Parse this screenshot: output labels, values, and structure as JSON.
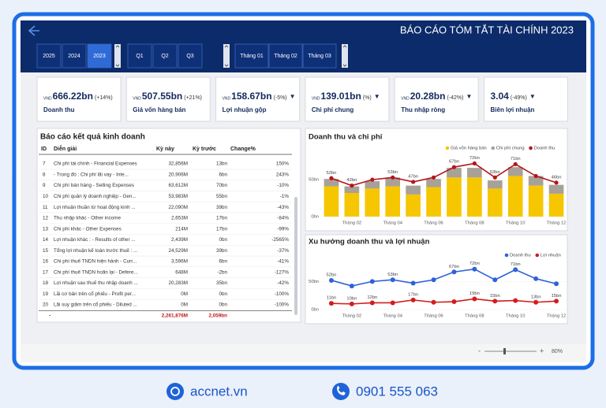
{
  "header": {
    "title": "BÁO CÁO TÓM TẮT TÀI CHÍNH 2023"
  },
  "filters": {
    "years": [
      "2025",
      "2024",
      "2023"
    ],
    "selected_year": "2023",
    "quarters": [
      "Q1",
      "Q2",
      "Q3"
    ],
    "months": [
      "Tháng 01",
      "Tháng 02",
      "Tháng 03"
    ]
  },
  "kpis": [
    {
      "unit": "VND",
      "value": "666.22bn",
      "change": "(+14%)",
      "label": "Doanh thu"
    },
    {
      "unit": "VND",
      "value": "507.55bn",
      "change": "(+21%)",
      "label": "Giá vốn hàng bán"
    },
    {
      "unit": "VND",
      "value": "158.67bn",
      "change": "(-5%)",
      "trend": "▼",
      "label": "Lợi nhuận gộp"
    },
    {
      "unit": "VND",
      "value": "139.01bn",
      "change": "(%)",
      "trend": "▼",
      "label": "Chi phí chung"
    },
    {
      "unit": "VND",
      "value": "20.28bn",
      "change": "(-42%)",
      "trend": "▼",
      "label": "Thu nhập ròng"
    },
    {
      "value": "3.04",
      "change": "(-49%)",
      "trend": "▼",
      "label": "Biên lợi nhuận"
    }
  ],
  "table": {
    "title": "Báo cáo kết quả kinh doanh",
    "columns": [
      "ID",
      "Diễn giải",
      "Kỳ này",
      "Kỳ trước",
      "Change%"
    ],
    "rows": [
      [
        "7",
        "Chi phí tài chính - Financial Expenses",
        "32,856M",
        "13bn",
        "150%"
      ],
      [
        "8",
        "- Trong đó : Chi phí lãi vay - Inte...",
        "20,906M",
        "6bn",
        "243%"
      ],
      [
        "9",
        "Chi phí bán hàng - Selling Expenses",
        "63,612M",
        "70bn",
        "-10%"
      ],
      [
        "10",
        "Chi phí quản lý doanh nghiệp - Gen...",
        "53,983M",
        "55bn",
        "-1%"
      ],
      [
        "11",
        "Lợi nhuận thuần từ hoạt động kinh ...",
        "22,090M",
        "39bn",
        "-43%"
      ],
      [
        "12",
        "Thu nhập khác - Other income",
        "2,653M",
        "17bn",
        "-84%"
      ],
      [
        "13",
        "Chi phí khác - Other Expenses",
        "214M",
        "17bn",
        "-99%"
      ],
      [
        "14",
        "Lợi nhuận khác : - Results of other ...",
        "2,439M",
        "0bn",
        "-2565%"
      ],
      [
        "15",
        "Tổng lợi nhuận kế toán trước thuế : ...",
        "24,529M",
        "39bn",
        "-37%"
      ],
      [
        "16",
        "Chi phí thuế TNDN hiện hành - Curr...",
        "3,596M",
        "6bn",
        "-41%"
      ],
      [
        "17",
        "Chi phí thuế TNDN hoãn lại - Defere...",
        "648M",
        "-2bn",
        "-127%"
      ],
      [
        "18",
        "Lợi nhuận sau thuế thu nhập doanh ...",
        "20,283M",
        "35bn",
        "-42%"
      ],
      [
        "19",
        "Lãi cơ bản trên cổ phiếu - Profit per...",
        "0M",
        "0bn",
        "-100%"
      ],
      [
        "20",
        "Lãi suy giảm trên cổ phiếu - Diluted ...",
        "0M",
        "0bn",
        "-100%"
      ]
    ],
    "total": [
      "-",
      "2,261,876M",
      "2,059bn"
    ]
  },
  "chart_data": [
    {
      "type": "combo",
      "title": "Doanh thu và chi phí",
      "categories": [
        null,
        "Tháng 02",
        null,
        "Tháng 04",
        null,
        "Tháng 06",
        null,
        "Tháng 08",
        null,
        "Tháng 10",
        null,
        "Tháng 12"
      ],
      "ylim": [
        0,
        80
      ],
      "yticks": [
        {
          "value": 0,
          "label": "0bn"
        },
        {
          "value": 50,
          "label": "50bn"
        }
      ],
      "grid": true,
      "legend": "top-right",
      "series": [
        {
          "name": "Giá vốn hàng bán",
          "type": "bar",
          "color": "#f6c600",
          "values": [
            41,
            32,
            38,
            41,
            30,
            40,
            53,
            53,
            38,
            55,
            42,
            31
          ]
        },
        {
          "name": "Chi phí chung",
          "type": "bar",
          "stacked": true,
          "color": "#a8a197",
          "values": [
            10,
            9,
            10,
            12,
            12,
            11,
            13,
            13,
            11,
            12,
            13,
            12
          ]
        },
        {
          "name": "Doanh thu",
          "type": "line",
          "color": "#b5151b",
          "values": [
            52,
            42,
            50,
            53,
            47,
            53,
            67,
            72,
            53,
            71,
            55,
            46
          ],
          "value_labels": [
            "52bn",
            "42bn",
            null,
            "53bn",
            "47bn",
            null,
            "67bn",
            "72bn",
            "53bn",
            "71bn",
            null,
            "46bn"
          ]
        }
      ]
    },
    {
      "type": "line",
      "title": "Xu hướng doanh thu và lợi nhuận",
      "categories": [
        null,
        "Tháng 02",
        null,
        "Tháng 04",
        null,
        "Tháng 06",
        null,
        "Tháng 08",
        null,
        "Tháng 10",
        null,
        "Tháng 12"
      ],
      "ylim": [
        0,
        80
      ],
      "yticks": [
        {
          "value": 0,
          "label": "0bn"
        },
        {
          "value": 50,
          "label": "50bn"
        }
      ],
      "grid": true,
      "legend": "top-right",
      "series": [
        {
          "name": "Doanh thu",
          "color": "#2f62d8",
          "values": [
            52,
            42,
            50,
            53,
            47,
            53,
            67,
            72,
            53,
            71,
            55,
            46
          ],
          "value_labels": [
            "52bn",
            null,
            null,
            "53bn",
            null,
            null,
            "67bn",
            "72bn",
            null,
            "71bn",
            null,
            null
          ]
        },
        {
          "name": "Lợi nhuận",
          "color": "#d21d1d",
          "values": [
            11,
            10,
            12,
            12,
            17,
            13,
            14,
            19,
            15,
            16,
            13,
            15
          ],
          "value_labels": [
            "11bn",
            "10bn",
            "12bn",
            null,
            "17bn",
            null,
            null,
            "19bn",
            "15bn",
            null,
            "13bn",
            "15bn"
          ]
        }
      ]
    }
  ],
  "status": {
    "zoom": "80%"
  },
  "contact": {
    "website": "accnet.vn",
    "phone": "0901 555 063"
  }
}
